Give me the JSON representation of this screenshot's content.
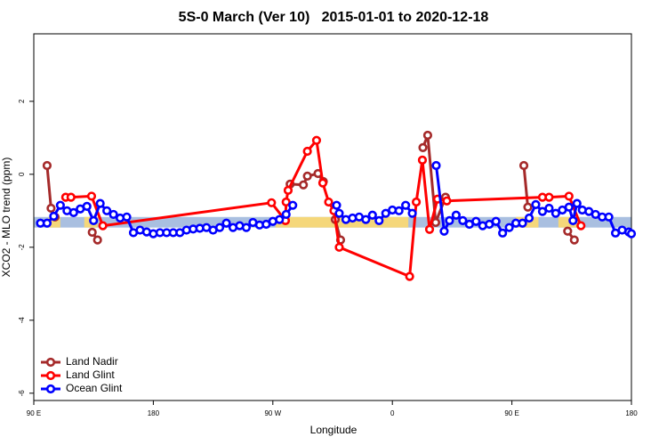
{
  "chart_data": {
    "type": "line",
    "title": "5S-0 March (Ver 10)   2015-01-01 to 2020-12-18",
    "x_label": "Longitude",
    "y_label": "XCO2 - MLO trend (ppm)",
    "xlim": [
      90,
      540
    ],
    "ylim": [
      -6.2,
      3.85
    ],
    "xticks": [
      {
        "value": 90,
        "label": "90 E"
      },
      180,
      {
        "value": 270,
        "label": "90 W"
      },
      {
        "value": 360,
        "label": "0"
      },
      {
        "value": 450,
        "label": "90 E"
      },
      {
        "value": 540,
        "label": "180"
      }
    ],
    "yticks": [
      -6,
      -4,
      -2,
      0,
      2
    ],
    "band": {
      "range": [
        -1.46,
        -1.17
      ],
      "color": "#a9bfe0",
      "land_color": "#f5d77a",
      "land": [
        [
          101,
          110
        ],
        [
          128,
          138
        ],
        [
          272,
          372
        ],
        [
          453,
          470
        ],
        [
          485,
          500
        ]
      ]
    },
    "legend": "bottom-left",
    "series": [
      {
        "name": "Land Nadir",
        "color": "#a52a2a",
        "x": [
          100,
          103,
          106,
          134,
          138,
          283,
          293,
          296,
          304,
          308,
          317,
          321,
          383,
          386.6,
          392.6,
          400,
          459,
          462,
          492,
          497
        ],
        "values": [
          0.24,
          -0.93,
          -1.17,
          -1.59,
          -1.8,
          -0.27,
          -0.29,
          -0.05,
          0.02,
          -0.2,
          -1.24,
          -1.8,
          0.73,
          1.07,
          -1.32,
          -0.63,
          0.24,
          -0.9,
          -1.56,
          -1.8
        ],
        "breaks": [
          null,
          null,
          3,
          null,
          5,
          null,
          null,
          null,
          null,
          10,
          null,
          12,
          null,
          null,
          null,
          16,
          null,
          18,
          null,
          null
        ]
      },
      {
        "name": "Land Glint",
        "color": "#ff0000",
        "x": [
          114,
          118,
          133.5,
          142,
          269,
          279.5,
          280,
          281.5,
          296,
          302.9,
          307.6,
          312,
          316,
          320,
          373,
          378,
          382.6,
          388,
          394,
          401,
          473,
          478,
          493,
          502
        ],
        "values": [
          -0.63,
          -0.63,
          -0.6,
          -1.41,
          -0.78,
          -1.27,
          -0.76,
          -0.44,
          0.63,
          0.93,
          -0.24,
          -0.76,
          -1.0,
          -2.0,
          -2.8,
          -0.76,
          0.39,
          -1.51,
          -0.68,
          -0.73,
          -0.63,
          -0.63,
          -0.6,
          -1.41
        ]
      },
      {
        "name": "Ocean Glint",
        "color": "#0000ff",
        "x": [
          95,
          100,
          105,
          110,
          115,
          120,
          125,
          130,
          135,
          140,
          145,
          150,
          155,
          160,
          165,
          170,
          175,
          180,
          185,
          190,
          195,
          200,
          205,
          210,
          215,
          220,
          225,
          230,
          235,
          240,
          245,
          250,
          255,
          260,
          265,
          270,
          275,
          280,
          285,
          300,
          318,
          320,
          325,
          330,
          335,
          340,
          345,
          350,
          355,
          360,
          365,
          370,
          375,
          385,
          393,
          399,
          403,
          408,
          413,
          418,
          423,
          428,
          433,
          438,
          443,
          448,
          453,
          458,
          463,
          468,
          473,
          478,
          483,
          488,
          493,
          496,
          499,
          503,
          508,
          513,
          518,
          523,
          528,
          533,
          538,
          540
        ],
        "values": [
          -1.34,
          -1.34,
          -1.15,
          -0.85,
          -1.0,
          -1.05,
          -0.95,
          -0.88,
          -1.27,
          -0.8,
          -1.0,
          -1.1,
          -1.2,
          -1.17,
          -1.6,
          -1.53,
          -1.58,
          -1.63,
          -1.6,
          -1.6,
          -1.6,
          -1.6,
          -1.53,
          -1.5,
          -1.48,
          -1.46,
          -1.53,
          -1.46,
          -1.34,
          -1.46,
          -1.41,
          -1.46,
          -1.32,
          -1.39,
          -1.37,
          -1.29,
          -1.24,
          -1.1,
          -0.85,
          null,
          -0.85,
          -1.07,
          -1.24,
          -1.2,
          -1.17,
          -1.24,
          -1.12,
          -1.27,
          -1.07,
          -0.98,
          -1.0,
          -0.85,
          -1.07,
          null,
          0.24,
          -1.56,
          -1.27,
          -1.12,
          -1.27,
          -1.37,
          -1.29,
          -1.41,
          -1.37,
          -1.29,
          -1.61,
          -1.46,
          -1.34,
          -1.34,
          -1.2,
          -0.83,
          -1.02,
          -0.93,
          -1.07,
          -0.98,
          -0.9,
          -1.27,
          -0.8,
          -0.98,
          -1.02,
          -1.1,
          -1.17,
          -1.17,
          -1.61,
          -1.53,
          -1.58,
          -1.63
        ]
      }
    ]
  }
}
